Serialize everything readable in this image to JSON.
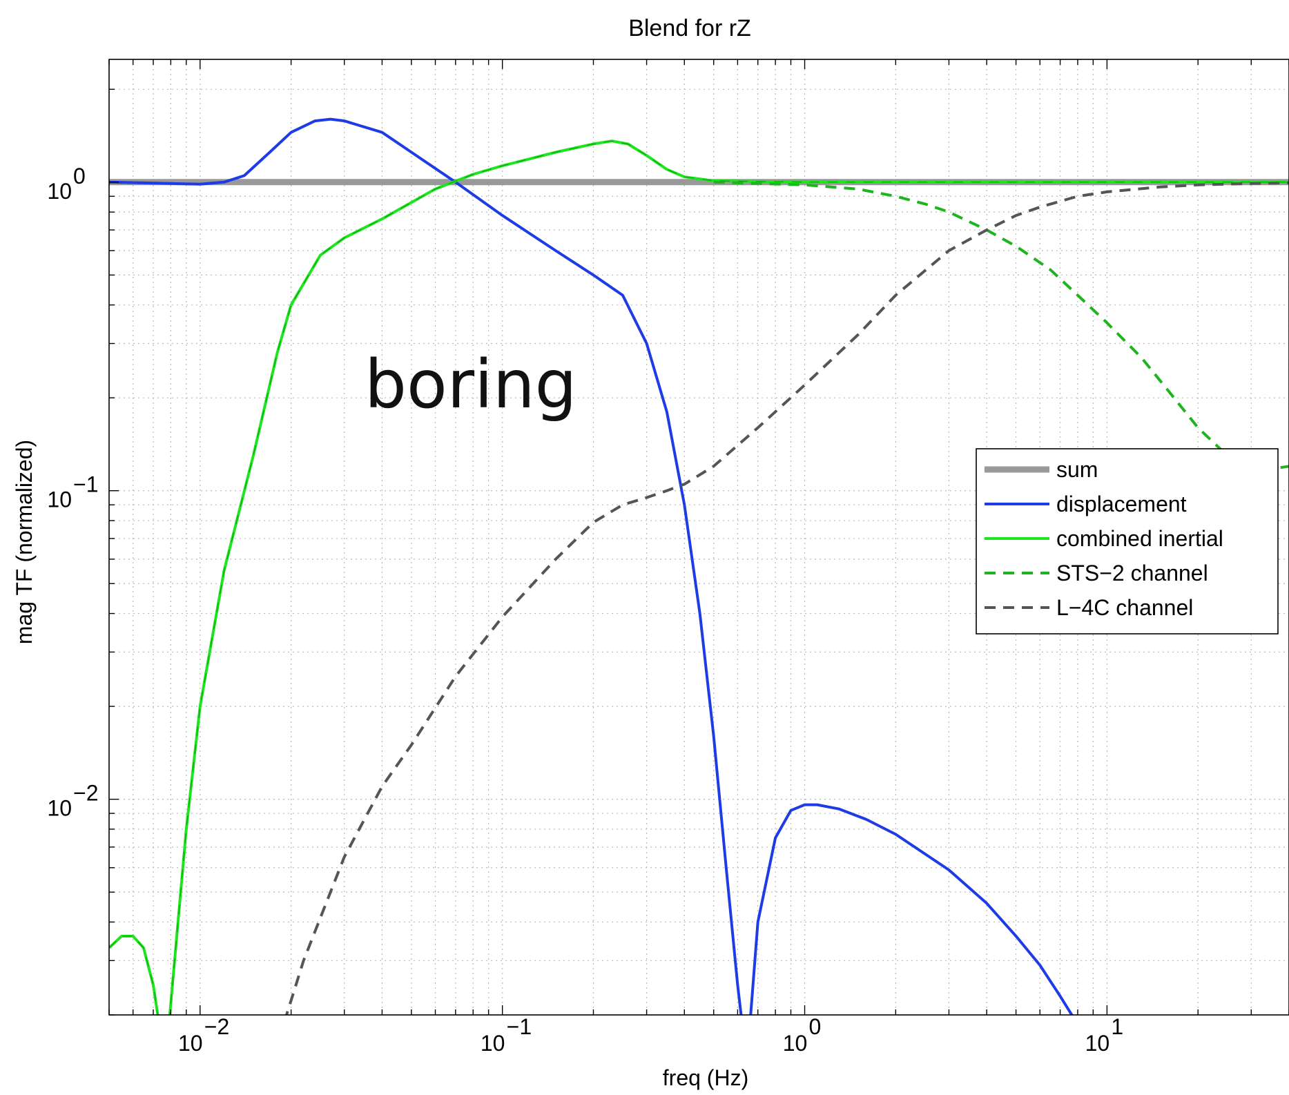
{
  "chart_data": {
    "type": "line",
    "title": "Blend for rZ",
    "xlabel": "freq (Hz)",
    "ylabel": "mag TF (normalized)",
    "xscale": "log",
    "yscale": "log",
    "xlim": [
      0.005,
      40
    ],
    "ylim": [
      0.002,
      2.5
    ],
    "grid": true,
    "legend_position": "right",
    "annotation": "boring",
    "x_ticks": [
      {
        "value": 0.01,
        "base": "10",
        "exp": "−2"
      },
      {
        "value": 0.1,
        "base": "10",
        "exp": "−1"
      },
      {
        "value": 1,
        "base": "10",
        "exp": "0"
      },
      {
        "value": 10,
        "base": "10",
        "exp": "1"
      }
    ],
    "y_ticks": [
      {
        "value": 0.01,
        "base": "10",
        "exp": "−2"
      },
      {
        "value": 0.1,
        "base": "10",
        "exp": "−1"
      },
      {
        "value": 1,
        "base": "10",
        "exp": "0"
      }
    ],
    "series": [
      {
        "name": "sum",
        "color": "#999999",
        "dash": "solid",
        "width": 9,
        "points": [
          [
            0.005,
            1.0
          ],
          [
            40,
            1.0
          ]
        ]
      },
      {
        "name": "displacement",
        "color": "#1e3ce6",
        "dash": "solid",
        "width": 4,
        "points": [
          [
            0.005,
            1.0
          ],
          [
            0.008,
            0.99
          ],
          [
            0.01,
            0.985
          ],
          [
            0.012,
            1.0
          ],
          [
            0.014,
            1.05
          ],
          [
            0.017,
            1.25
          ],
          [
            0.02,
            1.45
          ],
          [
            0.024,
            1.58
          ],
          [
            0.027,
            1.6
          ],
          [
            0.03,
            1.58
          ],
          [
            0.04,
            1.45
          ],
          [
            0.05,
            1.25
          ],
          [
            0.07,
            1.0
          ],
          [
            0.1,
            0.78
          ],
          [
            0.15,
            0.6
          ],
          [
            0.2,
            0.5
          ],
          [
            0.25,
            0.43
          ],
          [
            0.3,
            0.3
          ],
          [
            0.35,
            0.18
          ],
          [
            0.4,
            0.09
          ],
          [
            0.45,
            0.04
          ],
          [
            0.5,
            0.016
          ],
          [
            0.55,
            0.006
          ],
          [
            0.6,
            0.0025
          ],
          [
            0.62,
            0.0019
          ]
        ]
      },
      {
        "name": "displacement",
        "color": "#1e3ce6",
        "dash": "solid",
        "width": 4,
        "legend": false,
        "points": [
          [
            0.66,
            0.0019
          ],
          [
            0.7,
            0.004
          ],
          [
            0.8,
            0.0075
          ],
          [
            0.9,
            0.0092
          ],
          [
            1.0,
            0.0096
          ],
          [
            1.1,
            0.0096
          ],
          [
            1.3,
            0.0093
          ],
          [
            1.6,
            0.0086
          ],
          [
            2.0,
            0.0077
          ],
          [
            3.0,
            0.0059
          ],
          [
            4.0,
            0.0046
          ],
          [
            5.0,
            0.0036
          ],
          [
            6.0,
            0.0029
          ],
          [
            7.0,
            0.0023
          ],
          [
            7.9,
            0.0019
          ]
        ]
      },
      {
        "name": "combined inertial",
        "color": "#1ee61e",
        "dash": "solid",
        "width": 4,
        "points": [
          [
            0.005,
            0.0033
          ],
          [
            0.0055,
            0.0036
          ],
          [
            0.006,
            0.0036
          ],
          [
            0.0065,
            0.0033
          ],
          [
            0.007,
            0.0025
          ],
          [
            0.0073,
            0.0019
          ]
        ]
      },
      {
        "name": "combined inertial",
        "color": "#1ee61e",
        "dash": "solid",
        "width": 4,
        "legend": false,
        "points": [
          [
            0.0079,
            0.0019
          ],
          [
            0.009,
            0.008
          ],
          [
            0.01,
            0.02
          ],
          [
            0.012,
            0.055
          ],
          [
            0.015,
            0.13
          ],
          [
            0.018,
            0.28
          ],
          [
            0.02,
            0.4
          ],
          [
            0.025,
            0.58
          ],
          [
            0.03,
            0.66
          ],
          [
            0.04,
            0.76
          ],
          [
            0.06,
            0.95
          ],
          [
            0.08,
            1.06
          ],
          [
            0.1,
            1.13
          ],
          [
            0.15,
            1.25
          ],
          [
            0.2,
            1.33
          ],
          [
            0.23,
            1.36
          ],
          [
            0.26,
            1.33
          ],
          [
            0.3,
            1.22
          ],
          [
            0.35,
            1.1
          ],
          [
            0.4,
            1.04
          ],
          [
            0.5,
            1.01
          ],
          [
            1,
            1.0
          ],
          [
            40,
            1.0
          ]
        ]
      },
      {
        "name": "STS−2 channel",
        "color": "#1eb41e",
        "dash": "dashed",
        "width": 4,
        "points": [
          [
            0.5,
            1.0
          ],
          [
            1.0,
            0.98
          ],
          [
            1.5,
            0.95
          ],
          [
            2.0,
            0.9
          ],
          [
            2.5,
            0.85
          ],
          [
            3.0,
            0.8
          ],
          [
            4.0,
            0.7
          ],
          [
            5.0,
            0.62
          ],
          [
            6.5,
            0.52
          ],
          [
            8.0,
            0.43
          ],
          [
            10.0,
            0.35
          ],
          [
            13.0,
            0.27
          ],
          [
            16.0,
            0.21
          ],
          [
            20.0,
            0.16
          ],
          [
            25.0,
            0.13
          ],
          [
            30.0,
            0.115
          ],
          [
            40,
            0.12
          ]
        ]
      },
      {
        "name": "L−4C channel",
        "color": "#555555",
        "dash": "dashed",
        "width": 4,
        "points": [
          [
            0.019,
            0.0019
          ],
          [
            0.022,
            0.003
          ],
          [
            0.03,
            0.0065
          ],
          [
            0.04,
            0.011
          ],
          [
            0.05,
            0.015
          ],
          [
            0.07,
            0.025
          ],
          [
            0.1,
            0.039
          ],
          [
            0.15,
            0.06
          ],
          [
            0.2,
            0.079
          ],
          [
            0.25,
            0.09
          ],
          [
            0.3,
            0.095
          ],
          [
            0.35,
            0.1
          ],
          [
            0.4,
            0.105
          ],
          [
            0.5,
            0.12
          ],
          [
            0.7,
            0.16
          ],
          [
            1.0,
            0.22
          ],
          [
            1.5,
            0.32
          ],
          [
            2.0,
            0.43
          ],
          [
            3.0,
            0.6
          ],
          [
            4.0,
            0.7
          ],
          [
            5.0,
            0.78
          ],
          [
            6.0,
            0.83
          ],
          [
            8.0,
            0.9
          ],
          [
            10.0,
            0.93
          ],
          [
            15.0,
            0.965
          ],
          [
            20.0,
            0.98
          ],
          [
            30.0,
            0.99
          ],
          [
            40,
            0.995
          ]
        ]
      }
    ]
  }
}
